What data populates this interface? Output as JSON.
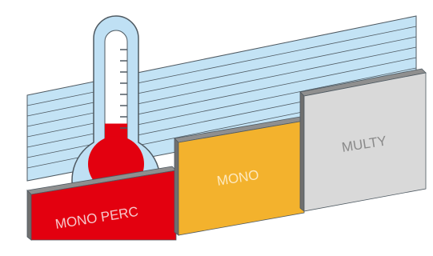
{
  "panels": [
    {
      "key": "mono_perc",
      "label": "MONO PERC",
      "fill": "#e3000f",
      "text_color": "#f6c8cc"
    },
    {
      "key": "mono",
      "label": "MONO",
      "fill": "#f3b22d",
      "text_color": "#fde9bf"
    },
    {
      "key": "multy",
      "label": "MULTY",
      "fill": "#d9d9d9",
      "text_color": "#8a8a8a"
    }
  ],
  "thermometer": {
    "fill_color": "#e3000f",
    "tube_color": "#bfe0f4",
    "outline_color": "#4f5a62",
    "level_fraction": 0.33,
    "tick_count": 8
  },
  "background": {
    "fill_color": "#c3e3f5",
    "line_color": "#4f5a62"
  }
}
